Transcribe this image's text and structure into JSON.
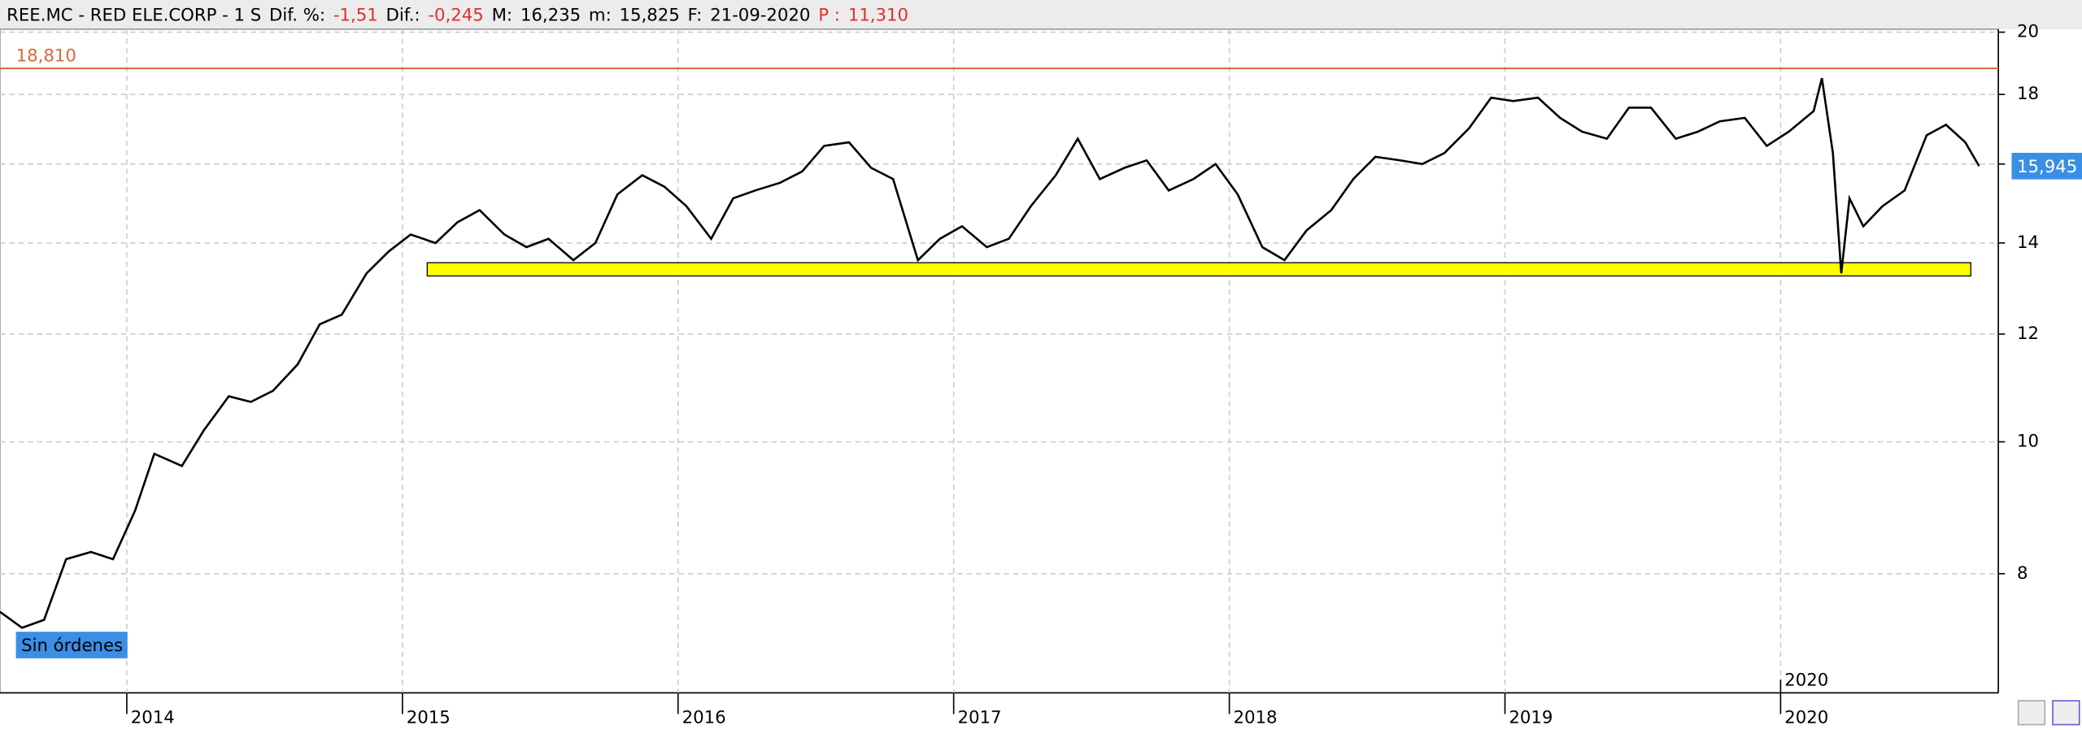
{
  "header": {
    "items": [
      {
        "text": "REE.MC - RED ELE.CORP - 1 S",
        "color": "#000000"
      },
      {
        "text": "Dif. %:",
        "color": "#000000"
      },
      {
        "text": "-1,51",
        "color": "#e0302a"
      },
      {
        "text": "Dif.:",
        "color": "#000000"
      },
      {
        "text": "-0,245",
        "color": "#e0302a"
      },
      {
        "text": "M:",
        "color": "#000000"
      },
      {
        "text": "16,235",
        "color": "#000000"
      },
      {
        "text": "m:",
        "color": "#000000"
      },
      {
        "text": "15,825",
        "color": "#000000"
      },
      {
        "text": "F:",
        "color": "#000000"
      },
      {
        "text": "21-09-2020",
        "color": "#000000"
      },
      {
        "text": "P :",
        "color": "#e0302a"
      },
      {
        "text": "11,310",
        "color": "#e0302a"
      }
    ]
  },
  "button": {
    "label": "Sin órdenes"
  },
  "chart_data": {
    "type": "line",
    "log_y": true,
    "grid": true,
    "xlim": [
      2013.54,
      2020.79
    ],
    "xticks": [
      2014,
      2015,
      2016,
      2017,
      2018,
      2019,
      2020
    ],
    "ylim": [
      6.54,
      20.1
    ],
    "yticks": [
      8,
      10,
      12,
      14,
      16,
      18,
      20
    ],
    "series": [
      {
        "color": "#000000",
        "x": [
          2013.54,
          2013.62,
          2013.7,
          2013.78,
          2013.87,
          2013.95,
          2014.03,
          2014.1,
          2014.2,
          2014.28,
          2014.37,
          2014.45,
          2014.53,
          2014.62,
          2014.7,
          2014.78,
          2014.87,
          2014.95,
          2015.03,
          2015.12,
          2015.2,
          2015.28,
          2015.37,
          2015.45,
          2015.53,
          2015.62,
          2015.7,
          2015.78,
          2015.87,
          2015.95,
          2016.03,
          2016.12,
          2016.2,
          2016.28,
          2016.37,
          2016.45,
          2016.53,
          2016.62,
          2016.7,
          2016.78,
          2016.87,
          2016.95,
          2017.03,
          2017.12,
          2017.2,
          2017.28,
          2017.37,
          2017.45,
          2017.53,
          2017.62,
          2017.7,
          2017.78,
          2017.87,
          2017.95,
          2018.03,
          2018.12,
          2018.2,
          2018.28,
          2018.37,
          2018.45,
          2018.53,
          2018.62,
          2018.7,
          2018.78,
          2018.87,
          2018.95,
          2019.03,
          2019.12,
          2019.2,
          2019.28,
          2019.37,
          2019.45,
          2019.53,
          2019.62,
          2019.7,
          2019.78,
          2019.87,
          2019.95,
          2020.03,
          2020.12,
          2020.15,
          2020.19,
          2020.22,
          2020.25,
          2020.3,
          2020.37,
          2020.45,
          2020.53,
          2020.6,
          2020.67,
          2020.72
        ],
        "values": [
          7.5,
          7.3,
          7.4,
          8.2,
          8.3,
          8.2,
          8.9,
          9.8,
          9.6,
          10.2,
          10.8,
          10.7,
          10.9,
          11.4,
          12.2,
          12.4,
          13.3,
          13.8,
          14.2,
          14.0,
          14.5,
          14.8,
          14.2,
          13.9,
          14.1,
          13.6,
          14.0,
          15.2,
          15.7,
          15.4,
          14.9,
          14.1,
          15.1,
          15.3,
          15.5,
          15.8,
          16.5,
          16.6,
          15.9,
          15.6,
          13.6,
          14.1,
          14.4,
          13.9,
          14.1,
          14.9,
          15.7,
          16.7,
          15.6,
          15.9,
          16.1,
          15.3,
          15.6,
          16.0,
          15.2,
          13.9,
          13.6,
          14.3,
          14.8,
          15.6,
          16.2,
          16.1,
          16.0,
          16.3,
          17.0,
          17.9,
          17.8,
          17.9,
          17.3,
          16.9,
          16.7,
          17.6,
          17.6,
          16.7,
          16.9,
          17.2,
          17.3,
          16.5,
          16.9,
          17.5,
          18.5,
          16.3,
          13.3,
          15.1,
          14.4,
          14.9,
          15.3,
          16.8,
          17.1,
          16.6,
          15.945
        ]
      }
    ],
    "hline": {
      "value": 18.81,
      "label": "18,810",
      "color": "#e0663c"
    },
    "last_price": {
      "value": 15.945,
      "label": "15,945",
      "color": "#3a8ee6"
    },
    "zone": {
      "x": [
        2015.09,
        2020.69
      ],
      "y": [
        13.24,
        13.54
      ],
      "color": "#ffff00"
    },
    "marker": {
      "x": 2020
    }
  }
}
